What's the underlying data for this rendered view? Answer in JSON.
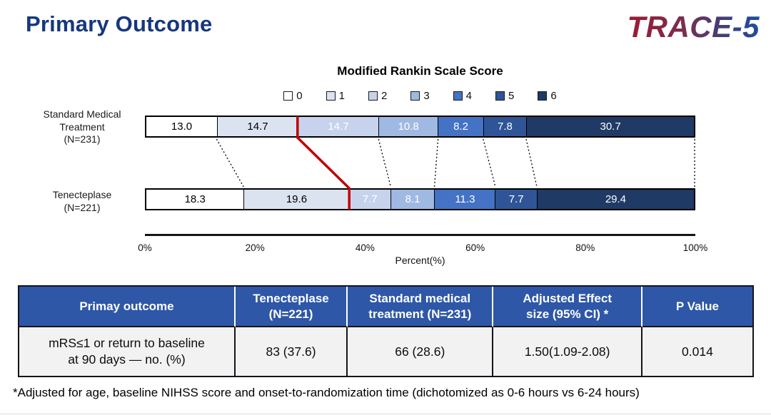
{
  "header": {
    "title": "Primary Outcome",
    "logo": "TRACE-5",
    "title_color": "#16377E",
    "logo_gradient": [
      "#9E1B32",
      "#1F4E9F"
    ]
  },
  "chart_data": {
    "type": "bar",
    "stacked": true,
    "orientation": "horizontal",
    "title": "Modified Rankin Scale Score",
    "xlabel": "Percent(%)",
    "x_ticks": [
      "0%",
      "20%",
      "40%",
      "60%",
      "80%",
      "100%"
    ],
    "xlim": [
      0,
      100
    ],
    "legend_position": "top",
    "legend_labels": [
      "0",
      "1",
      "2",
      "3",
      "4",
      "5",
      "6"
    ],
    "segment_colors": [
      "#FFFFFF",
      "#DBE2F0",
      "#C7D3EC",
      "#A0B9E2",
      "#4472C4",
      "#2F5597",
      "#203A66"
    ],
    "rows": [
      {
        "label": "Standard Medical\nTreatment\n(N=231)",
        "values": [
          13.0,
          14.7,
          14.7,
          10.8,
          8.2,
          7.8,
          30.7
        ]
      },
      {
        "label": "Tenecteplase\n(N=221)",
        "values": [
          18.3,
          19.6,
          7.7,
          8.1,
          11.3,
          7.7,
          29.4
        ]
      }
    ],
    "red_divider": {
      "after_segment_index": 1,
      "color": "#C00000",
      "meaning": "mRS 0-1 boundary"
    },
    "connector_line_style": "dotted"
  },
  "table": {
    "headers": [
      "Primay outcome",
      "Tenecteplase\n(N=221)",
      "Standard medical\ntreatment (N=231)",
      "Adjusted Effect\nsize (95% CI) *",
      "P Value"
    ],
    "rows": [
      [
        "mRS≤1 or  return to baseline\nat 90 days — no. (%)",
        "83 (37.6)",
        "66 (28.6)",
        "1.50(1.09-2.08)",
        "0.014"
      ]
    ],
    "header_bg": "#2E57A7"
  },
  "footnote": {
    "text": "*Adjusted for age, baseline NIHSS score and onset-to-randomization time (dichotomized as 0-6 hours vs 6-24 hours)"
  }
}
